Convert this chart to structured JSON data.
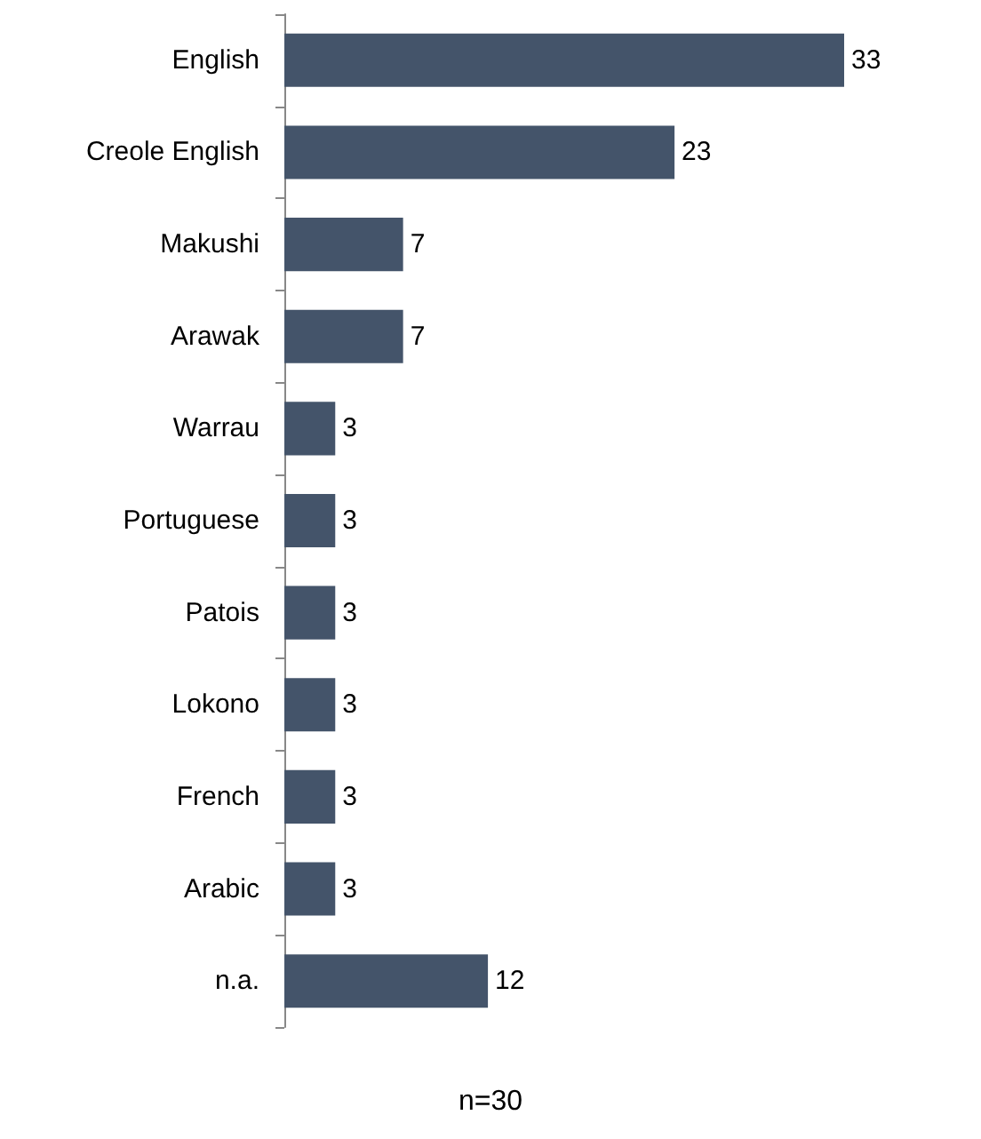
{
  "chart_data": {
    "type": "bar",
    "orientation": "horizontal",
    "categories": [
      "English",
      "Creole English",
      "Makushi",
      "Arawak",
      "Warrau",
      "Portuguese",
      "Patois",
      "Lokono",
      "French",
      "Arabic",
      "n.a."
    ],
    "values": [
      33,
      23,
      7,
      7,
      3,
      3,
      3,
      3,
      3,
      3,
      12
    ],
    "color": "#44546a",
    "data_labels": true,
    "annotations": [
      "n=30"
    ]
  }
}
